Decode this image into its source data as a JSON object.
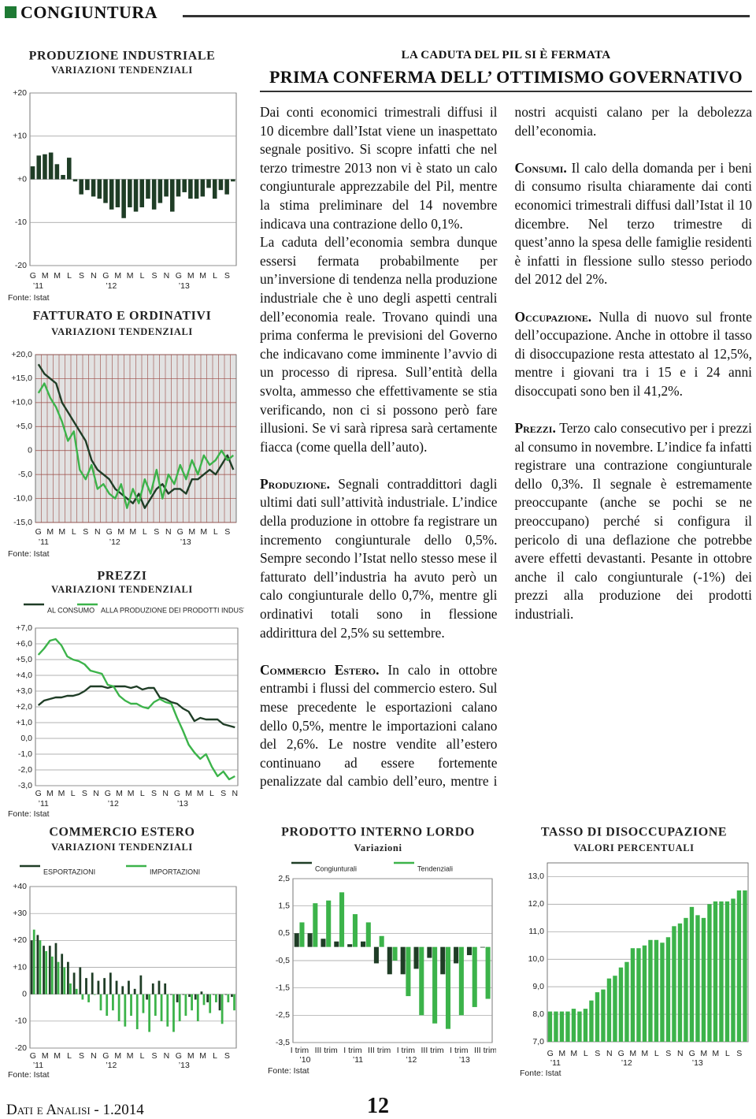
{
  "header": {
    "section": "CONGIUNTURA"
  },
  "article": {
    "kicker": "LA CADUTA DEL PIL SI È FERMATA",
    "headline": "PRIMA CONFERMA DELL’ OTTIMISMO GOVERNATIVO",
    "intro": [
      "Dai conti economici trimestrali diffusi il 10 dicembre dall’Istat viene un inaspettato segnale positivo. Si scopre infatti che nel terzo trimestre 2013 non vi è stato un calo congiunturale apprezzabile del Pil, mentre la stima preliminare del 14 novembre indicava una contrazione dello 0,1%.",
      "La caduta dell’economia sembra dunque essersi fermata probabilmente per un’inversione di tendenza nella produzione industriale che è uno degli aspetti centrali dell’economia reale. Trovano quindi una prima conferma le previsioni del Governo che indicavano come imminente l’avvio di un processo di ripresa. Sull’entità della svolta, ammesso che effettivamente se stia verificando, non ci si possono però fare illusioni. Se vi sarà ripresa sarà certamente fiacca (come quella dell’auto)."
    ],
    "sections": [
      {
        "heading": "Produzione.",
        "text": "Segnali contraddittori dagli ultimi dati sull’attività industriale. L’indice della produzione in ottobre fa registrare un incremento congiunturale dello 0,5%. Sempre secondo l’Istat nello stesso mese il fatturato dell’industria ha avuto però un calo congiunturale dello 0,7%, mentre gli ordinativi totali sono in flessione addirittura del 2,5% su settembre."
      },
      {
        "heading": "Commercio Estero.",
        "text": "In calo in ottobre entrambi i flussi del commercio estero. Sul mese precedente le esportazioni calano dello 0,5%, mentre le importazioni calano del 2,6%. Le nostre vendite all’estero continuano ad essere fortemente penalizzate dal cambio dell’euro, mentre i nostri acquisti calano per la debolezza dell’economia."
      },
      {
        "heading": "Consumi.",
        "text": "Il calo della domanda per i beni di consumo risulta chiaramente dai conti economici trimestrali diffusi dall’Istat il 10 dicembre. Nel terzo trimestre di quest’anno la spesa delle famiglie residenti è infatti in flessione sullo stesso periodo del 2012 del 2%."
      },
      {
        "heading": "Occupazione.",
        "text": "Nulla di nuovo sul fronte dell’occupazione. Anche in ottobre il tasso di disoccupazione resta attestato al 12,5%, mentre i giovani tra i 15 e i 24 anni disoccupati sono ben il 41,2%."
      },
      {
        "heading": "Prezzi.",
        "text": "Terzo calo consecutivo per i prezzi al consumo in novembre. L’indice fa infatti registrare una contrazione congiunturale dello 0,3%. Il segnale è estremamente preoccupante (anche se pochi se ne preoccupano) perché si configura il pericolo di una deflazione che potrebbe avere effetti devastanti. Pesante in ottobre anche il calo congiunturale (-1%) dei prezzi alla produzione dei prodotti industriali."
      }
    ]
  },
  "footer": {
    "publication": "Dati e Analisi - 1.2014",
    "page": "12"
  },
  "chart_data": [
    {
      "type": "bar",
      "title": "PRODUZIONE INDUSTRIALE",
      "subtitle": "VARIAZIONI TENDENZIALI",
      "source": "Fonte: Istat",
      "categories": [
        "G",
        null,
        "M",
        null,
        "M",
        null,
        "L",
        null,
        "S",
        null,
        "N",
        null,
        "G",
        null,
        "M",
        null,
        "M",
        null,
        "L",
        null,
        "S",
        null,
        "N",
        null,
        "G",
        null,
        "M",
        null,
        "M",
        null,
        "L",
        null,
        "S",
        null
      ],
      "years": [
        "’11",
        "’12",
        "’13"
      ],
      "series": [
        {
          "color": "#1f3d26",
          "values": [
            3.0,
            5.5,
            5.8,
            6.2,
            3.5,
            1.0,
            5.0,
            -0.5,
            -3.5,
            -2.5,
            -4.0,
            -4.5,
            -5.5,
            -7.0,
            -6.5,
            -9.0,
            -6.5,
            -7.5,
            -6.5,
            -4.5,
            -7.0,
            -5.5,
            -4.0,
            -7.5,
            -4.0,
            -3.0,
            -4.5,
            -4.5,
            -4.0,
            -2.0,
            -4.5,
            -2.5,
            -3.5,
            -0.5
          ]
        }
      ],
      "ylim": [
        -20,
        20
      ],
      "yticks": [
        {
          "value": 20,
          "label": "+20"
        },
        {
          "value": 10,
          "label": "+10"
        },
        {
          "value": 0,
          "label": "+0"
        },
        -10,
        -20
      ],
      "grid": true
    },
    {
      "type": "line",
      "title": "FATTURATO E ORDINATIVI",
      "subtitle": "VARIAZIONI TENDENZIALI",
      "source": "Fonte: Istat",
      "categories": [
        "G",
        null,
        "M",
        null,
        "M",
        null,
        "L",
        null,
        "S",
        null,
        "N",
        null,
        "G",
        null,
        "M",
        null,
        "M",
        null,
        "L",
        null,
        "S",
        null,
        "N",
        null,
        "G",
        null,
        "M",
        null,
        "M",
        null,
        "L",
        null,
        "S",
        null
      ],
      "years": [
        "’11",
        "’12",
        "’13"
      ],
      "series": [
        {
          "color": "#1f3d26",
          "values": [
            18,
            16,
            15,
            14,
            10,
            8,
            6,
            4,
            2,
            -2,
            -4,
            -5,
            -6,
            -8,
            -9,
            -10,
            -11,
            -9,
            -12,
            -10,
            -8,
            -7,
            -9,
            -8,
            -8,
            -9,
            -6,
            -6,
            -5,
            -4,
            -5,
            -3,
            -1,
            -4
          ]
        },
        {
          "color": "#3cb34a",
          "values": [
            12,
            14,
            11,
            9,
            6,
            2,
            4,
            -4,
            -6,
            -3,
            -8,
            -7,
            -9,
            -10,
            -7,
            -12,
            -8,
            -11,
            -6,
            -9,
            -4,
            -10,
            -5,
            -7,
            -3,
            -6,
            -2,
            -5,
            -1,
            -3,
            -2,
            0,
            -2,
            -1
          ]
        }
      ],
      "ylim": [
        -15,
        20
      ],
      "yticks": [
        {
          "value": 20,
          "label": "+20,0"
        },
        {
          "value": 15,
          "label": "+15,0"
        },
        {
          "value": 10,
          "label": "+10,0"
        },
        {
          "value": 5,
          "label": "+5,0"
        },
        0,
        {
          "value": -5,
          "label": "-5,0"
        },
        {
          "value": -10,
          "label": "-10,0"
        },
        {
          "value": -15,
          "label": "-15,0"
        }
      ],
      "grid": true
    },
    {
      "type": "line",
      "title": "PREZZI",
      "subtitle": "VARIAZIONI TENDENZIALI",
      "source": "Fonte: Istat",
      "categories": [
        "G",
        null,
        "M",
        null,
        "M",
        null,
        "L",
        null,
        "S",
        null,
        "N",
        null,
        "G",
        null,
        "M",
        null,
        "M",
        null,
        "L",
        null,
        "S",
        null,
        "N",
        null,
        "G",
        null,
        "M",
        null,
        "M",
        null,
        "L",
        null,
        "S",
        null,
        "N"
      ],
      "years": [
        "’11",
        "’12",
        "’13"
      ],
      "series": [
        {
          "name": "AL CONSUMO",
          "color": "#1f3d26",
          "values": [
            2.1,
            2.4,
            2.5,
            2.6,
            2.6,
            2.7,
            2.7,
            2.8,
            3.0,
            3.3,
            3.3,
            3.3,
            3.2,
            3.3,
            3.3,
            3.3,
            3.2,
            3.3,
            3.1,
            3.2,
            3.2,
            2.6,
            2.5,
            2.3,
            2.2,
            1.9,
            1.7,
            1.1,
            1.3,
            1.2,
            1.2,
            1.2,
            0.9,
            0.8,
            0.7
          ]
        },
        {
          "name": "ALLA PRODUZIONE DEI PRODOTTI INDUSTRIALI",
          "color": "#3cb34a",
          "values": [
            5.3,
            5.7,
            6.2,
            6.3,
            5.9,
            5.2,
            5.0,
            4.9,
            4.7,
            4.3,
            4.2,
            4.1,
            3.4,
            3.3,
            2.7,
            2.4,
            2.2,
            2.2,
            2.0,
            1.9,
            2.3,
            2.5,
            2.3,
            2.2,
            1.3,
            0.5,
            -0.4,
            -0.9,
            -1.3,
            -1.0,
            -1.8,
            -2.4,
            -2.1,
            -2.6,
            -2.4
          ]
        }
      ],
      "ylim": [
        -3,
        7
      ],
      "yticks": [
        {
          "value": 7,
          "label": "+7,0"
        },
        {
          "value": 6,
          "label": "+6,0"
        },
        {
          "value": 5,
          "label": "+5,0"
        },
        {
          "value": 4,
          "label": "+4,0"
        },
        {
          "value": 3,
          "label": "+3,0"
        },
        {
          "value": 2,
          "label": "+2,0"
        },
        {
          "value": 1,
          "label": "+1,0"
        },
        {
          "value": 0,
          "label": "0,0"
        },
        {
          "value": -1,
          "label": "-1,0"
        },
        {
          "value": -2,
          "label": "-2,0"
        },
        {
          "value": -3,
          "label": "-3,0"
        }
      ],
      "grid": true
    },
    {
      "type": "bar",
      "title": "COMMERCIO ESTERO",
      "subtitle": "VARIAZIONI TENDENZIALI",
      "source": "Fonte: Istat",
      "categories": [
        "G",
        null,
        "M",
        null,
        "M",
        null,
        "L",
        null,
        "S",
        null,
        "N",
        null,
        "G",
        null,
        "M",
        null,
        "M",
        null,
        "L",
        null,
        "S",
        null,
        "N",
        null,
        "G",
        null,
        "M",
        null,
        "M",
        null,
        "L",
        null,
        "S",
        null
      ],
      "years": [
        "’11",
        "’12",
        "’13"
      ],
      "series": [
        {
          "name": "ESPORTAZIONI",
          "color": "#1f3d26",
          "values": [
            20,
            22,
            18,
            18,
            19,
            15,
            12,
            8,
            10,
            6,
            8,
            5,
            6,
            8,
            5,
            3,
            5,
            2,
            7,
            -2,
            4,
            5,
            4,
            0,
            -3,
            0,
            -1,
            -2,
            1,
            -3,
            0,
            -6,
            0,
            -1
          ]
        },
        {
          "name": "IMPORTAZIONI",
          "color": "#3cb34a",
          "values": [
            24,
            20,
            16,
            14,
            12,
            10,
            4,
            2,
            -2,
            -3,
            0,
            -6,
            -8,
            -6,
            -10,
            -12,
            -8,
            -13,
            -7,
            -14,
            -8,
            -10,
            -12,
            -14,
            -10,
            -8,
            -6,
            -10,
            -4,
            -7,
            -3,
            -11,
            -3,
            -6
          ]
        }
      ],
      "ylim": [
        -20,
        40
      ],
      "yticks": [
        {
          "value": 40,
          "label": "+40"
        },
        {
          "value": 30,
          "label": "+30"
        },
        {
          "value": 20,
          "label": "+20"
        },
        {
          "value": 10,
          "label": "+10"
        },
        0,
        -10,
        -20
      ],
      "grid": true
    },
    {
      "type": "bar",
      "title": "PRODOTTO INTERNO LORDO",
      "subtitle": "Variazioni",
      "source": "Fonte: Istat",
      "categories": [
        "I trim",
        null,
        "III trim",
        null,
        "I trim",
        null,
        "III trim",
        null,
        "I trim",
        null,
        "III trim",
        null,
        "I trim",
        null,
        "III trim"
      ],
      "years": [
        "’10",
        "’11",
        "’12",
        "’13"
      ],
      "series": [
        {
          "name": "Congiunturali",
          "color": "#1f3d26",
          "values": [
            0.5,
            0.5,
            0.3,
            0.2,
            0.1,
            0.2,
            -0.6,
            -1.0,
            -1.0,
            -0.8,
            -0.4,
            -1.0,
            -0.6,
            -0.3,
            0.0
          ]
        },
        {
          "name": "Tendenziali",
          "color": "#3cb34a",
          "values": [
            0.9,
            1.6,
            1.7,
            2.0,
            1.2,
            0.9,
            0.4,
            -0.5,
            -1.8,
            -2.5,
            -2.8,
            -3.0,
            -2.5,
            -2.2,
            -1.9
          ]
        }
      ],
      "ylim": [
        -3.5,
        2.5
      ],
      "yticks": [
        {
          "value": 2.5,
          "label": "2,5"
        },
        {
          "value": 1.5,
          "label": "1,5"
        },
        {
          "value": 0.5,
          "label": "0,5"
        },
        {
          "value": -0.5,
          "label": "-0,5"
        },
        {
          "value": -1.5,
          "label": "-1,5"
        },
        {
          "value": -2.5,
          "label": "-2,5"
        },
        {
          "value": -3.5,
          "label": "-3,5"
        }
      ],
      "grid": true
    },
    {
      "type": "bar",
      "title": "TASSO DI DISOCCUPAZIONE",
      "subtitle": "VALORI PERCENTUALI",
      "source": "Fonte: Istat",
      "categories": [
        "G",
        null,
        "M",
        null,
        "M",
        null,
        "L",
        null,
        "S",
        null,
        "N",
        null,
        "G",
        null,
        "M",
        null,
        "M",
        null,
        "L",
        null,
        "S",
        null,
        "N",
        null,
        "G",
        null,
        "M",
        null,
        "M",
        null,
        "L",
        null,
        "S",
        null
      ],
      "years": [
        "’11",
        "’12",
        "’13"
      ],
      "series": [
        {
          "color": "#3cb34a",
          "values": [
            8.1,
            8.1,
            8.1,
            8.1,
            8.2,
            8.1,
            8.2,
            8.5,
            8.8,
            8.9,
            9.3,
            9.4,
            9.7,
            9.9,
            10.4,
            10.4,
            10.5,
            10.7,
            10.7,
            10.6,
            10.8,
            11.2,
            11.3,
            11.5,
            11.9,
            11.6,
            11.5,
            12.0,
            12.1,
            12.1,
            12.1,
            12.2,
            12.5,
            12.5
          ]
        }
      ],
      "ylim": [
        7,
        13.5
      ],
      "yticks": [
        {
          "value": 13,
          "label": "13,0"
        },
        {
          "value": 12,
          "label": "12,0"
        },
        {
          "value": 11,
          "label": "11,0"
        },
        {
          "value": 10,
          "label": "10,0"
        },
        {
          "value": 9,
          "label": "9,0"
        },
        {
          "value": 8,
          "label": "8,0"
        },
        {
          "value": 7,
          "label": "7,0"
        }
      ],
      "grid": true
    }
  ]
}
